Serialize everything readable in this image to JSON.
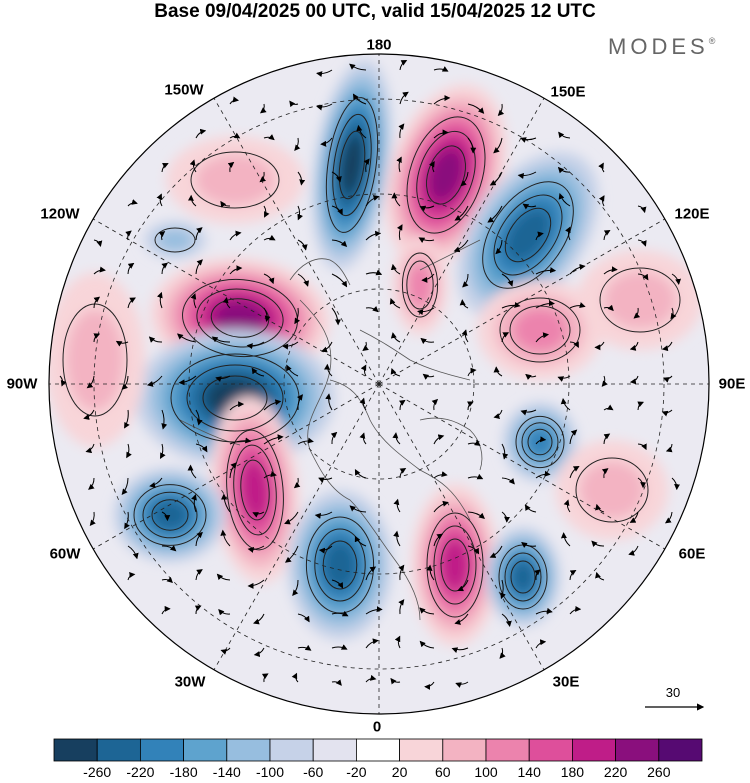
{
  "title": "Base 09/04/2025 00 UTC, valid 15/04/2025 12 UTC",
  "brand": {
    "text": "MODES",
    "mark": "®"
  },
  "longitude_labels": {
    "lon_180": "180",
    "lon_150e": "150E",
    "lon_120e": "120E",
    "lon_90e": "90E",
    "lon_60e": "60E",
    "lon_30e": "30E",
    "lon_0": "0",
    "lon_30w": "30W",
    "lon_60w": "60W",
    "lon_90w": "90W",
    "lon_120w": "120W",
    "lon_150w": "150W"
  },
  "reference_vector": {
    "label": "30"
  },
  "colorbar": {
    "ticks": [
      "-260",
      "-220",
      "-180",
      "-140",
      "-100",
      "-60",
      "-20",
      "20",
      "60",
      "100",
      "140",
      "180",
      "220",
      "260"
    ],
    "colors": [
      "#173f5f",
      "#1d6595",
      "#3282b9",
      "#5ea3ce",
      "#97bedf",
      "#c6d2e8",
      "#e3e3ef",
      "#ffffff",
      "#f8d5d9",
      "#f3b3c2",
      "#ec83ad",
      "#de4f9b",
      "#bf1d88",
      "#8a0f7d",
      "#560a72"
    ]
  }
}
